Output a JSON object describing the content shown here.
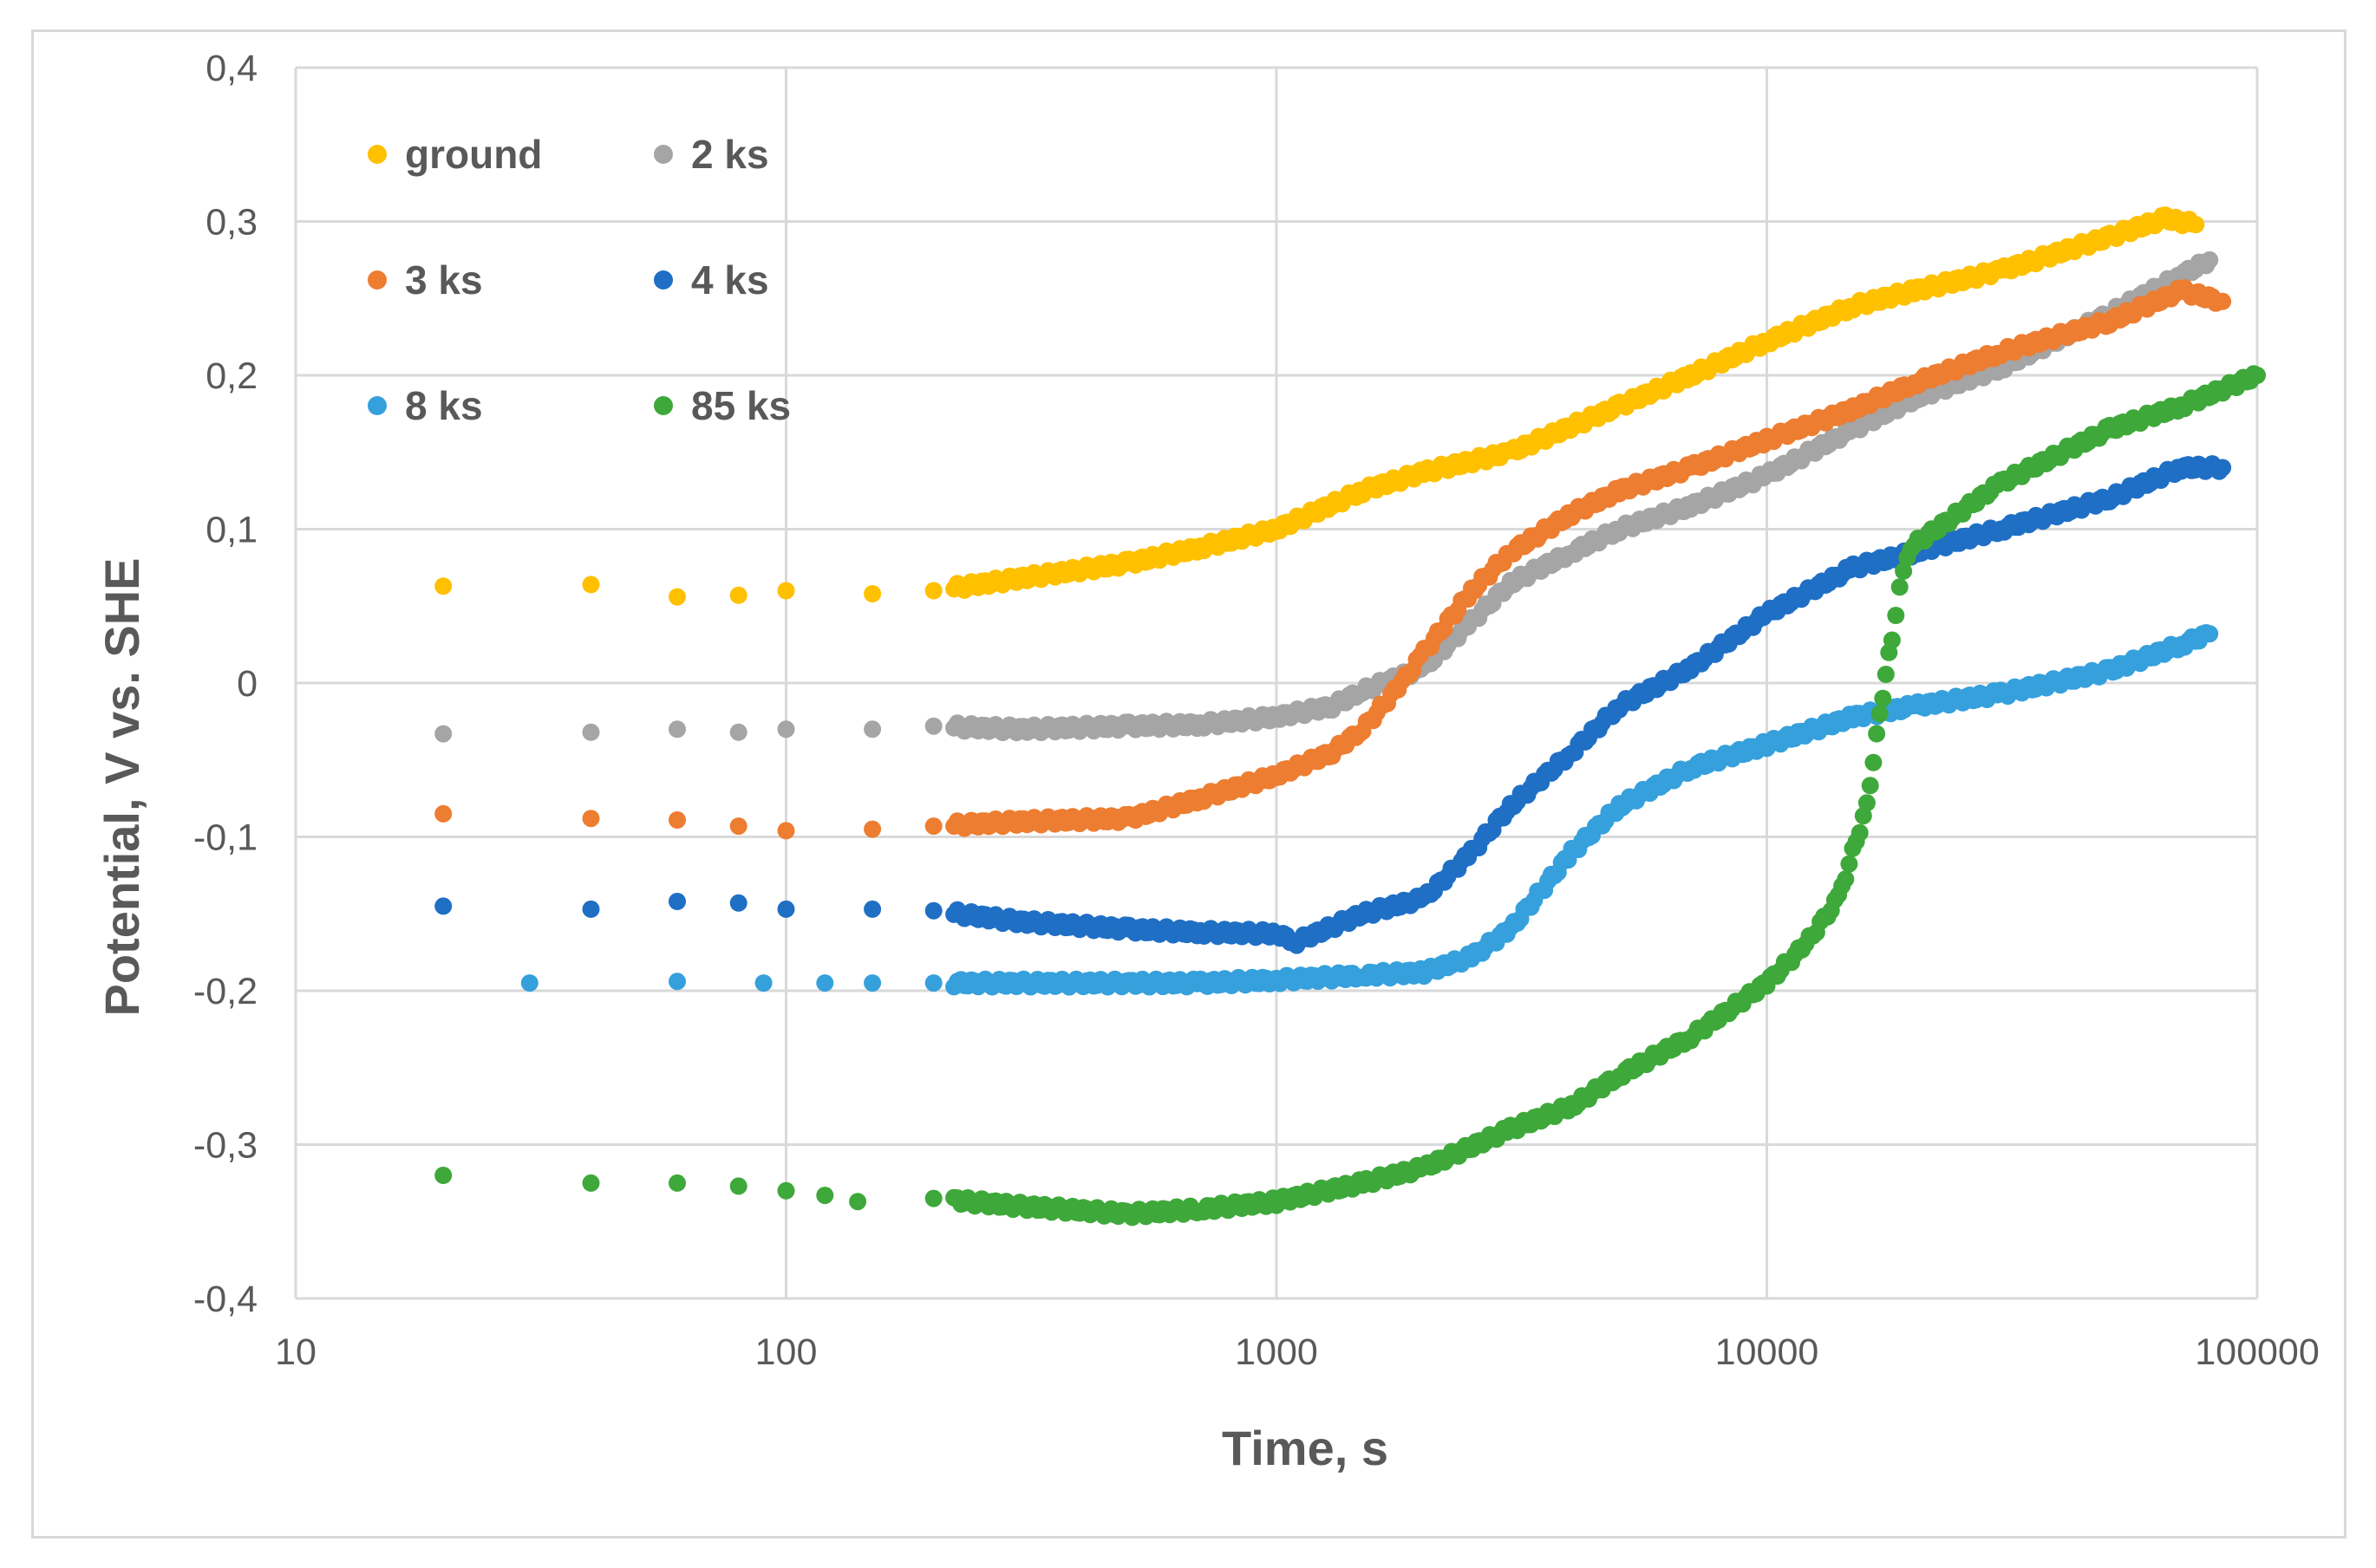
{
  "chart_data": {
    "type": "scatter",
    "title": "",
    "xlabel": "Time, s",
    "ylabel": "Potential, V vs. SHE",
    "xscale": "log",
    "xlim": [
      10,
      100000
    ],
    "ylim": [
      -0.4,
      0.4
    ],
    "grid": true,
    "legend_position": "top-left",
    "x_tick_labels": [
      {
        "value": 10,
        "label": "10"
      },
      {
        "value": 100,
        "label": "100"
      },
      {
        "value": 1000,
        "label": "1000"
      },
      {
        "value": 10000,
        "label": "10000"
      },
      {
        "value": 100000,
        "label": "100000"
      }
    ],
    "y_tick_labels": [
      {
        "value": 0.4,
        "label": "0,4"
      },
      {
        "value": 0.3,
        "label": "0,3"
      },
      {
        "value": 0.2,
        "label": "0,2"
      },
      {
        "value": 0.1,
        "label": "0,1"
      },
      {
        "value": 0,
        "label": "0"
      },
      {
        "value": -0.1,
        "label": "-0,1"
      },
      {
        "value": -0.2,
        "label": "-0,2"
      },
      {
        "value": -0.3,
        "label": "-0,3"
      },
      {
        "value": -0.4,
        "label": "-0,4"
      }
    ],
    "series": [
      {
        "name": "ground",
        "color": "#FFC000",
        "points": [
          [
            20,
            0.063
          ],
          [
            40,
            0.064
          ],
          [
            60,
            0.056
          ],
          [
            80,
            0.057
          ],
          [
            100,
            0.06
          ],
          [
            150,
            0.058
          ],
          [
            200,
            0.06
          ],
          [
            300,
            0.068
          ],
          [
            500,
            0.078
          ],
          [
            700,
            0.088
          ],
          [
            1000,
            0.1
          ],
          [
            1500,
            0.125
          ],
          [
            2000,
            0.137
          ],
          [
            3000,
            0.15
          ],
          [
            5000,
            0.18
          ],
          [
            7000,
            0.2
          ],
          [
            10000,
            0.222
          ],
          [
            15000,
            0.245
          ],
          [
            20000,
            0.255
          ],
          [
            30000,
            0.268
          ],
          [
            50000,
            0.29
          ],
          [
            65000,
            0.302
          ],
          [
            75000,
            0.298
          ]
        ]
      },
      {
        "name": "2 ks",
        "color": "#A5A5A5",
        "points": [
          [
            20,
            -0.033
          ],
          [
            40,
            -0.032
          ],
          [
            60,
            -0.03
          ],
          [
            80,
            -0.032
          ],
          [
            100,
            -0.03
          ],
          [
            150,
            -0.03
          ],
          [
            200,
            -0.028
          ],
          [
            300,
            -0.03
          ],
          [
            500,
            -0.028
          ],
          [
            700,
            -0.027
          ],
          [
            1000,
            -0.022
          ],
          [
            1300,
            -0.015
          ],
          [
            1500,
            -0.005
          ],
          [
            2000,
            0.01
          ],
          [
            2500,
            0.04
          ],
          [
            3000,
            0.065
          ],
          [
            4000,
            0.085
          ],
          [
            5000,
            0.1
          ],
          [
            7000,
            0.115
          ],
          [
            10000,
            0.135
          ],
          [
            15000,
            0.165
          ],
          [
            20000,
            0.185
          ],
          [
            30000,
            0.205
          ],
          [
            50000,
            0.24
          ],
          [
            70000,
            0.265
          ],
          [
            80000,
            0.275
          ]
        ]
      },
      {
        "name": "3 ks",
        "color": "#ED7D31",
        "points": [
          [
            20,
            -0.085
          ],
          [
            40,
            -0.088
          ],
          [
            60,
            -0.089
          ],
          [
            80,
            -0.093
          ],
          [
            100,
            -0.096
          ],
          [
            150,
            -0.095
          ],
          [
            200,
            -0.093
          ],
          [
            300,
            -0.09
          ],
          [
            500,
            -0.088
          ],
          [
            700,
            -0.075
          ],
          [
            1000,
            -0.06
          ],
          [
            1300,
            -0.045
          ],
          [
            1500,
            -0.03
          ],
          [
            1800,
            0.0
          ],
          [
            2000,
            0.02
          ],
          [
            2500,
            0.06
          ],
          [
            3000,
            0.085
          ],
          [
            4000,
            0.11
          ],
          [
            5000,
            0.125
          ],
          [
            7000,
            0.14
          ],
          [
            10000,
            0.158
          ],
          [
            15000,
            0.178
          ],
          [
            20000,
            0.195
          ],
          [
            30000,
            0.215
          ],
          [
            50000,
            0.235
          ],
          [
            70000,
            0.255
          ],
          [
            85000,
            0.248
          ]
        ]
      },
      {
        "name": "4 ks",
        "color": "#1F6FC5",
        "points": [
          [
            20,
            -0.145
          ],
          [
            40,
            -0.147
          ],
          [
            60,
            -0.142
          ],
          [
            80,
            -0.143
          ],
          [
            100,
            -0.147
          ],
          [
            150,
            -0.147
          ],
          [
            200,
            -0.148
          ],
          [
            300,
            -0.155
          ],
          [
            500,
            -0.16
          ],
          [
            700,
            -0.162
          ],
          [
            1000,
            -0.163
          ],
          [
            1100,
            -0.168
          ],
          [
            1500,
            -0.15
          ],
          [
            2000,
            -0.14
          ],
          [
            2500,
            -0.11
          ],
          [
            3000,
            -0.08
          ],
          [
            4000,
            -0.045
          ],
          [
            5000,
            -0.015
          ],
          [
            7000,
            0.01
          ],
          [
            10000,
            0.045
          ],
          [
            15000,
            0.075
          ],
          [
            20000,
            0.085
          ],
          [
            30000,
            0.1
          ],
          [
            50000,
            0.12
          ],
          [
            70000,
            0.14
          ],
          [
            85000,
            0.14
          ]
        ]
      },
      {
        "name": "8 ks",
        "color": "#35A0DC",
        "points": [
          [
            30,
            -0.195
          ],
          [
            60,
            -0.194
          ],
          [
            90,
            -0.195
          ],
          [
            120,
            -0.195
          ],
          [
            150,
            -0.195
          ],
          [
            200,
            -0.195
          ],
          [
            300,
            -0.195
          ],
          [
            500,
            -0.195
          ],
          [
            700,
            -0.195
          ],
          [
            1000,
            -0.193
          ],
          [
            1500,
            -0.19
          ],
          [
            2000,
            -0.188
          ],
          [
            2500,
            -0.178
          ],
          [
            3000,
            -0.16
          ],
          [
            4000,
            -0.11
          ],
          [
            5000,
            -0.08
          ],
          [
            7000,
            -0.055
          ],
          [
            10000,
            -0.04
          ],
          [
            15000,
            -0.022
          ],
          [
            20000,
            -0.015
          ],
          [
            30000,
            -0.007
          ],
          [
            50000,
            0.008
          ],
          [
            70000,
            0.025
          ],
          [
            80000,
            0.032
          ]
        ]
      },
      {
        "name": "85 ks",
        "color": "#3EA83A",
        "points": [
          [
            20,
            -0.32
          ],
          [
            40,
            -0.325
          ],
          [
            60,
            -0.325
          ],
          [
            80,
            -0.327
          ],
          [
            100,
            -0.33
          ],
          [
            120,
            -0.333
          ],
          [
            140,
            -0.337
          ],
          [
            200,
            -0.335
          ],
          [
            300,
            -0.34
          ],
          [
            500,
            -0.345
          ],
          [
            700,
            -0.342
          ],
          [
            1000,
            -0.337
          ],
          [
            1500,
            -0.325
          ],
          [
            2000,
            -0.315
          ],
          [
            3000,
            -0.29
          ],
          [
            4000,
            -0.275
          ],
          [
            5000,
            -0.255
          ],
          [
            7000,
            -0.23
          ],
          [
            10000,
            -0.195
          ],
          [
            12000,
            -0.17
          ],
          [
            14000,
            -0.14
          ],
          [
            16000,
            -0.08
          ],
          [
            17000,
            -0.02
          ],
          [
            18000,
            0.03
          ],
          [
            19000,
            0.075
          ],
          [
            20000,
            0.09
          ],
          [
            30000,
            0.13
          ],
          [
            50000,
            0.165
          ],
          [
            70000,
            0.18
          ],
          [
            100000,
            0.2
          ]
        ]
      }
    ]
  }
}
